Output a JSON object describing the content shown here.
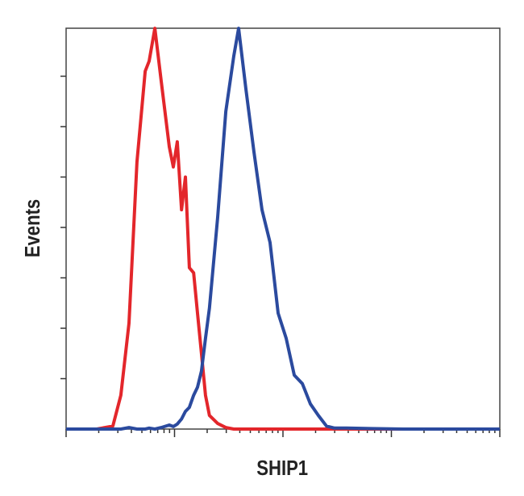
{
  "chart_data": {
    "type": "line",
    "xlabel": "SHIP1",
    "ylabel": "Events",
    "xscale": "log",
    "xlim": [
      1,
      10000
    ],
    "xticks": [
      1,
      10,
      100,
      1000,
      10000
    ],
    "xminorticks": [
      2,
      3,
      4,
      5,
      6,
      7,
      8,
      9,
      20,
      30,
      40,
      50,
      60,
      70,
      80,
      90,
      200,
      300,
      400,
      500,
      600,
      700,
      800,
      900,
      2000,
      3000,
      4000,
      5000,
      6000,
      7000,
      8000,
      9000
    ],
    "ylim": [
      0,
      8
    ],
    "yticks": [
      1,
      2,
      3,
      4,
      5,
      6,
      7
    ],
    "grid": false,
    "x": [
      1,
      1.92,
      2.7,
      3.2,
      3.8,
      4.5,
      5.36,
      5.83,
      6.58,
      7.54,
      8.95,
      9.75,
      10.6,
      11.6,
      12.6,
      13.7,
      15.0,
      16.3,
      17.7,
      19.3,
      21.0,
      25.0,
      29.7,
      35.2,
      39.0,
      45.5,
      54.0,
      64.1,
      76.0,
      90.2,
      107,
      127,
      151,
      179,
      212,
      252,
      299,
      386,
      646,
      1282,
      10000
    ],
    "series": [
      {
        "color": "#e3262b",
        "values": [
          0,
          0,
          0.06,
          0.67,
          2.1,
          5.3,
          7.1,
          7.3,
          7.95,
          6.9,
          5.6,
          5.2,
          5.7,
          4.35,
          5.0,
          3.2,
          3.1,
          2.3,
          1.5,
          0.67,
          0.27,
          0.11,
          0.03,
          0,
          0,
          0,
          0,
          0,
          0,
          0,
          0,
          0,
          0,
          0,
          0,
          0,
          0,
          0,
          0,
          0,
          0
        ]
      },
      {
        "color": "#2b4a9e",
        "values": [
          0,
          0,
          0,
          0,
          0.03,
          0,
          0,
          0.02,
          0,
          0.03,
          0.08,
          0.05,
          0.1,
          0.2,
          0.35,
          0.43,
          0.67,
          0.83,
          1.15,
          1.8,
          2.4,
          4.2,
          6.3,
          7.4,
          7.95,
          6.75,
          5.5,
          4.35,
          3.7,
          2.3,
          1.8,
          1.07,
          0.9,
          0.5,
          0.27,
          0.06,
          0.02,
          0.02,
          0.01,
          0,
          0
        ]
      }
    ]
  }
}
